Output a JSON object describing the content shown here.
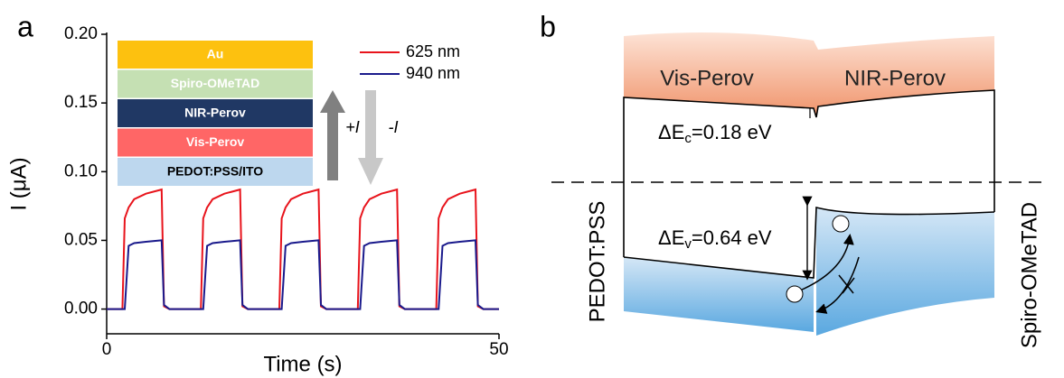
{
  "panel_labels": [
    "a",
    "b"
  ],
  "chart_data": {
    "type": "line",
    "x_label": "Time (s)",
    "y_label": "I (μA)",
    "x": [
      0,
      2,
      2.3,
      2.8,
      3.5,
      5,
      7,
      7.3,
      8,
      10,
      12,
      12.3,
      12.8,
      13.5,
      15,
      17,
      17.3,
      18,
      20,
      22,
      22.3,
      22.8,
      23.5,
      25,
      27,
      27.3,
      28,
      30,
      32,
      32.3,
      32.8,
      33.5,
      35,
      37,
      37.3,
      38,
      40,
      42,
      42.3,
      42.8,
      43.5,
      45,
      47,
      47.3,
      48,
      50
    ],
    "series": [
      {
        "name": "625 nm",
        "color": "#e8141c",
        "values": [
          0,
          0,
          0.066,
          0.074,
          0.08,
          0.084,
          0.087,
          0.002,
          0,
          0,
          0,
          0.066,
          0.074,
          0.08,
          0.084,
          0.087,
          0.002,
          0,
          0,
          0,
          0.066,
          0.074,
          0.08,
          0.084,
          0.087,
          0.002,
          0,
          0,
          0,
          0.066,
          0.074,
          0.08,
          0.084,
          0.087,
          0.002,
          0,
          0,
          0,
          0.066,
          0.074,
          0.08,
          0.084,
          0.087,
          0.002,
          0,
          0
        ]
      },
      {
        "name": "940 nm",
        "color": "#1a1a8c",
        "values": [
          0,
          0,
          0,
          0.046,
          0.048,
          0.049,
          0.05,
          0.003,
          0,
          0,
          0,
          0,
          0.046,
          0.048,
          0.049,
          0.05,
          0.003,
          0,
          0,
          0,
          0,
          0.046,
          0.048,
          0.049,
          0.05,
          0.003,
          0,
          0,
          0,
          0,
          0.046,
          0.048,
          0.049,
          0.05,
          0.003,
          0,
          0,
          0,
          0,
          0.046,
          0.048,
          0.049,
          0.05,
          0.003,
          0,
          0
        ]
      }
    ],
    "xlim": [
      0,
      50
    ],
    "xticks": [
      0,
      50
    ],
    "ylim": [
      -0.018,
      0.2
    ],
    "yticks": [
      {
        "value": 0,
        "label": "0.00"
      },
      0.05,
      {
        "value": 0.1,
        "label": "0.10"
      },
      0.15,
      {
        "value": 0.2,
        "label": "0.20"
      }
    ],
    "legend": "upper right"
  },
  "inset": {
    "layers": [
      {
        "label": "Au",
        "color": "#fdc10f"
      },
      {
        "label": "Spiro-OMeTAD",
        "color": "#c5e0b3"
      },
      {
        "label": "NIR-Perov",
        "color": "#203864"
      },
      {
        "label": "Vis-Perov",
        "color": "#ff6666"
      },
      {
        "label": "PEDOT:PSS/ITO",
        "color": "#bdd7ee"
      }
    ],
    "arrows": [
      "+I",
      "-I"
    ]
  },
  "diagram": {
    "regions": [
      "Vis-Perov",
      "NIR-Perov"
    ],
    "offsets": [
      {
        "symbol": "ΔE",
        "sub": "c",
        "rest": "=0.18 eV"
      },
      {
        "symbol": "ΔE",
        "sub": "v",
        "rest": "=0.64 eV"
      }
    ],
    "contacts": [
      "PEDOT:PSS",
      "Spiro-OMeTAD"
    ]
  }
}
